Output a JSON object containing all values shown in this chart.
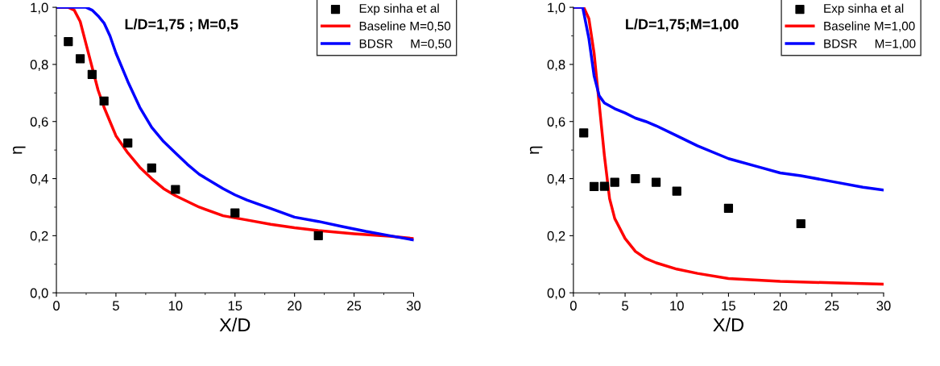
{
  "chart_data": [
    {
      "type": "line",
      "title": "L/D=1,75 ; M=0,5",
      "xlabel": "X/D",
      "ylabel": "η",
      "xlim": [
        0,
        30
      ],
      "ylim": [
        0,
        1.0
      ],
      "xticks": [
        0,
        5,
        10,
        15,
        20,
        25,
        30
      ],
      "yticks": [
        {
          "value": 0,
          "label": "0,0"
        },
        {
          "value": 0.2,
          "label": "0,2"
        },
        {
          "value": 0.4,
          "label": "0,4"
        },
        {
          "value": 0.6,
          "label": "0,6"
        },
        {
          "value": 0.8,
          "label": "0,8"
        },
        {
          "value": 1.0,
          "label": "1,0"
        }
      ],
      "legend": "top right",
      "grid": false,
      "series": [
        {
          "name": "Exp sinha et al",
          "type": "scatter",
          "marker": "square",
          "color": "#000000",
          "x": [
            1,
            2,
            3,
            4,
            6,
            8,
            10,
            15,
            22
          ],
          "values": [
            0.88,
            0.82,
            0.765,
            0.672,
            0.525,
            0.437,
            0.362,
            0.28,
            0.2
          ]
        },
        {
          "name": "Baseline M=0,50",
          "color": "#ff0000",
          "x": [
            0,
            1,
            1.5,
            2,
            2.5,
            3,
            3.5,
            4,
            4.5,
            5,
            6,
            7,
            8,
            9,
            10,
            12,
            14,
            16,
            18,
            20,
            22,
            25,
            28,
            30
          ],
          "values": [
            1,
            1,
            0.99,
            0.95,
            0.87,
            0.79,
            0.71,
            0.65,
            0.6,
            0.55,
            0.49,
            0.44,
            0.4,
            0.365,
            0.34,
            0.3,
            0.27,
            0.255,
            0.24,
            0.228,
            0.218,
            0.207,
            0.198,
            0.19
          ]
        },
        {
          "name": "BDSR     M=0,50",
          "color": "#0000ff",
          "x": [
            0,
            2.5,
            3,
            3.5,
            4,
            4.5,
            5,
            6,
            7,
            8,
            9,
            10,
            11,
            12,
            14,
            15,
            16,
            18,
            20,
            22,
            24,
            26,
            28,
            30
          ],
          "values": [
            1,
            1,
            0.99,
            0.97,
            0.945,
            0.9,
            0.84,
            0.74,
            0.65,
            0.58,
            0.53,
            0.49,
            0.45,
            0.415,
            0.365,
            0.343,
            0.325,
            0.295,
            0.265,
            0.25,
            0.232,
            0.215,
            0.2,
            0.185
          ]
        }
      ]
    },
    {
      "type": "line",
      "title": "L/D=1,75;M=1,00",
      "xlabel": "X/D",
      "ylabel": "η",
      "xlim": [
        0,
        30
      ],
      "ylim": [
        0,
        1.0
      ],
      "xticks": [
        0,
        5,
        10,
        15,
        20,
        25,
        30
      ],
      "yticks": [
        {
          "value": 0,
          "label": "0,0"
        },
        {
          "value": 0.2,
          "label": "0,2"
        },
        {
          "value": 0.4,
          "label": "0,4"
        },
        {
          "value": 0.6,
          "label": "0,6"
        },
        {
          "value": 0.8,
          "label": "0,8"
        },
        {
          "value": 1.0,
          "label": "1,0"
        }
      ],
      "legend": "top right",
      "grid": false,
      "series": [
        {
          "name": "Exp sinha et al",
          "type": "scatter",
          "marker": "square",
          "color": "#000000",
          "x": [
            1,
            2,
            3,
            4,
            6,
            8,
            10,
            15,
            22
          ],
          "values": [
            0.56,
            0.372,
            0.373,
            0.387,
            0.4,
            0.387,
            0.356,
            0.296,
            0.242
          ]
        },
        {
          "name": "Baseline M=1,00",
          "color": "#ff0000",
          "x": [
            0,
            1,
            1.5,
            2,
            2.5,
            3,
            3.5,
            4,
            5,
            6,
            7,
            8,
            10,
            12,
            15,
            20,
            25,
            30
          ],
          "values": [
            1,
            1,
            0.96,
            0.84,
            0.66,
            0.48,
            0.33,
            0.26,
            0.19,
            0.145,
            0.12,
            0.105,
            0.083,
            0.068,
            0.05,
            0.04,
            0.035,
            0.03
          ]
        },
        {
          "name": "BDSR     M=1,00",
          "color": "#0000ff",
          "x": [
            0,
            0.9,
            1.5,
            2,
            2.5,
            3,
            4,
            5,
            6,
            7,
            8,
            10,
            12,
            15,
            18,
            20,
            22,
            25,
            28,
            30
          ],
          "values": [
            1,
            1,
            0.89,
            0.76,
            0.69,
            0.665,
            0.645,
            0.63,
            0.612,
            0.6,
            0.585,
            0.55,
            0.515,
            0.47,
            0.44,
            0.42,
            0.41,
            0.39,
            0.37,
            0.36
          ]
        }
      ]
    }
  ]
}
